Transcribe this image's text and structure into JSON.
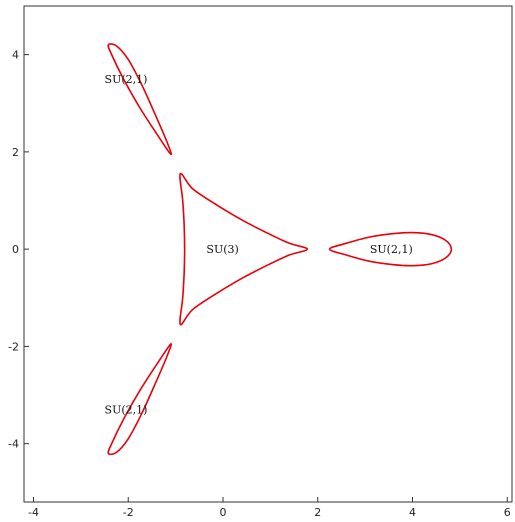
{
  "chart_data": {
    "type": "line",
    "title": "",
    "xlabel": "",
    "ylabel": "",
    "xlim": [
      -4.2,
      6.1
    ],
    "ylim": [
      -5.2,
      5.0
    ],
    "grid": false,
    "x_ticks": [
      -4,
      -2,
      0,
      2,
      4,
      6
    ],
    "y_ticks": [
      -4,
      -2,
      0,
      2,
      4
    ],
    "x_tick_labels": [
      "-4",
      "-2",
      "0",
      "2",
      "4",
      "6"
    ],
    "y_tick_labels": [
      "-4",
      "-2",
      "0",
      "2",
      "4"
    ],
    "curve_color": "#e8000b",
    "series": [
      {
        "points": [
          [
            -0.9,
            1.55
          ],
          [
            -0.65,
            1.25
          ],
          [
            -0.2,
            0.95
          ],
          [
            0.4,
            0.6
          ],
          [
            1.0,
            0.3
          ],
          [
            1.4,
            0.12
          ],
          [
            1.78,
            0.0
          ],
          [
            1.4,
            -0.12
          ],
          [
            1.0,
            -0.3
          ],
          [
            0.4,
            -0.6
          ],
          [
            -0.2,
            -0.95
          ],
          [
            -0.65,
            -1.25
          ],
          [
            -0.9,
            -1.55
          ],
          [
            -0.85,
            -1.0
          ],
          [
            -0.82,
            -0.5
          ],
          [
            -0.81,
            0.0
          ],
          [
            -0.82,
            0.5
          ],
          [
            -0.85,
            1.0
          ],
          [
            -0.9,
            1.55
          ]
        ]
      },
      {
        "points": [
          [
            2.25,
            0.0
          ],
          [
            2.6,
            0.12
          ],
          [
            3.1,
            0.25
          ],
          [
            3.6,
            0.32
          ],
          [
            4.0,
            0.34
          ],
          [
            4.4,
            0.3
          ],
          [
            4.7,
            0.18
          ],
          [
            4.82,
            0.0
          ],
          [
            4.7,
            -0.18
          ],
          [
            4.4,
            -0.3
          ],
          [
            4.0,
            -0.34
          ],
          [
            3.6,
            -0.32
          ],
          [
            3.1,
            -0.25
          ],
          [
            2.6,
            -0.12
          ],
          [
            2.25,
            0.0
          ]
        ]
      },
      {
        "points": [
          [
            -1.1,
            1.95
          ],
          [
            -1.35,
            2.3
          ],
          [
            -1.75,
            2.9
          ],
          [
            -2.1,
            3.5
          ],
          [
            -2.35,
            4.0
          ],
          [
            -2.42,
            4.2
          ],
          [
            -2.25,
            4.18
          ],
          [
            -2.0,
            3.9
          ],
          [
            -1.7,
            3.35
          ],
          [
            -1.4,
            2.7
          ],
          [
            -1.18,
            2.2
          ],
          [
            -1.1,
            1.95
          ]
        ]
      },
      {
        "points": [
          [
            -1.1,
            -1.95
          ],
          [
            -1.35,
            -2.3
          ],
          [
            -1.75,
            -2.9
          ],
          [
            -2.1,
            -3.5
          ],
          [
            -2.35,
            -4.0
          ],
          [
            -2.42,
            -4.2
          ],
          [
            -2.25,
            -4.18
          ],
          [
            -2.0,
            -3.9
          ],
          [
            -1.7,
            -3.35
          ],
          [
            -1.4,
            -2.7
          ],
          [
            -1.18,
            -2.2
          ],
          [
            -1.1,
            -1.95
          ]
        ]
      }
    ],
    "annotations": [
      {
        "text": "SU(3)",
        "x": -0.35,
        "y": 0.0
      },
      {
        "text": "SU(2,1)",
        "x": 3.1,
        "y": 0.0
      },
      {
        "text": "SU(2,1)",
        "x": -2.5,
        "y": 3.5
      },
      {
        "text": "SU(2,1)",
        "x": -2.5,
        "y": -3.3
      }
    ]
  }
}
